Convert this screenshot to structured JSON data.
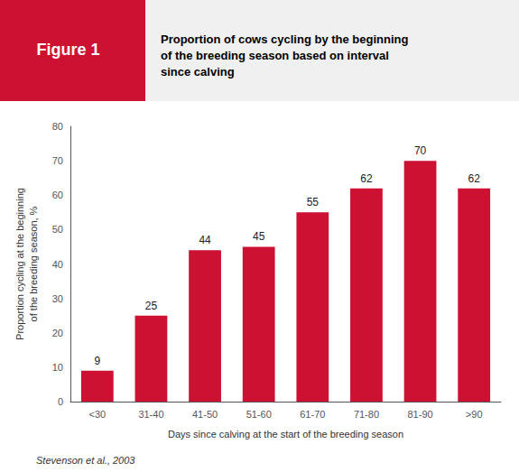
{
  "chart_data": {
    "type": "bar",
    "title": "Proportion of cows cycling by the beginning\nof the breeding season based on interval\nsince calving",
    "annotations": [
      "Figure 1",
      "Stevenson et al., 2003"
    ],
    "xlabel": "Days since calving at the start of the breeding season",
    "ylabel": "Proportion cycling at the beginning\nof the breeding season, %",
    "categories": [
      "<30",
      "31-40",
      "41-50",
      "51-60",
      "61-70",
      "71-80",
      "81-90",
      ">90"
    ],
    "values": [
      9,
      25,
      44,
      45,
      55,
      62,
      70,
      62
    ],
    "color": "#CC1133",
    "ylim": [
      0,
      80
    ],
    "yticks": [
      0,
      10,
      20,
      30,
      40,
      50,
      60,
      70,
      80
    ],
    "grid": false,
    "data_labels": true
  }
}
